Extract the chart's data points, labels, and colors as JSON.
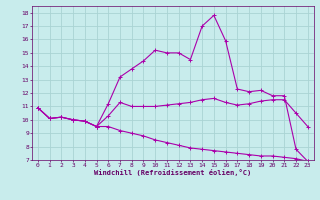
{
  "xlabel": "Windchill (Refroidissement éolien,°C)",
  "background_color": "#c8ecec",
  "grid_color": "#aad4d4",
  "line_color": "#aa00aa",
  "xlim": [
    -0.5,
    23.5
  ],
  "ylim": [
    7,
    18.5
  ],
  "xticks": [
    0,
    1,
    2,
    3,
    4,
    5,
    6,
    7,
    8,
    9,
    10,
    11,
    12,
    13,
    14,
    15,
    16,
    17,
    18,
    19,
    20,
    21,
    22,
    23
  ],
  "yticks": [
    7,
    8,
    9,
    10,
    11,
    12,
    13,
    14,
    15,
    16,
    17,
    18
  ],
  "line1_x": [
    0,
    1,
    2,
    3,
    4,
    5,
    6,
    7,
    8,
    9,
    10,
    11,
    12,
    13,
    14,
    15,
    16,
    17,
    18,
    19,
    20,
    21,
    22,
    23
  ],
  "line1_y": [
    10.9,
    10.1,
    10.2,
    10.0,
    9.9,
    9.5,
    10.3,
    11.3,
    11.0,
    11.0,
    11.0,
    11.1,
    11.2,
    11.3,
    11.5,
    11.6,
    11.3,
    11.1,
    11.2,
    11.4,
    11.5,
    11.5,
    10.5,
    9.5
  ],
  "line2_x": [
    0,
    1,
    2,
    3,
    4,
    5,
    6,
    7,
    8,
    9,
    10,
    11,
    12,
    13,
    14,
    15,
    16,
    17,
    18,
    19,
    20,
    21,
    22,
    23
  ],
  "line2_y": [
    10.9,
    10.1,
    10.2,
    10.0,
    9.9,
    9.5,
    11.2,
    13.2,
    13.8,
    14.4,
    15.2,
    15.0,
    15.0,
    14.5,
    17.0,
    17.8,
    15.9,
    12.3,
    12.1,
    12.2,
    11.8,
    11.8,
    7.8,
    6.9
  ],
  "line3_x": [
    0,
    1,
    2,
    3,
    4,
    5,
    6,
    7,
    8,
    9,
    10,
    11,
    12,
    13,
    14,
    15,
    16,
    17,
    18,
    19,
    20,
    21,
    22,
    23
  ],
  "line3_y": [
    10.9,
    10.1,
    10.2,
    10.0,
    9.9,
    9.5,
    9.5,
    9.2,
    9.0,
    8.8,
    8.5,
    8.3,
    8.1,
    7.9,
    7.8,
    7.7,
    7.6,
    7.5,
    7.4,
    7.3,
    7.3,
    7.2,
    7.1,
    6.9
  ],
  "tick_color": "#660066",
  "label_fontsize": 4.5,
  "xlabel_fontsize": 5.0
}
